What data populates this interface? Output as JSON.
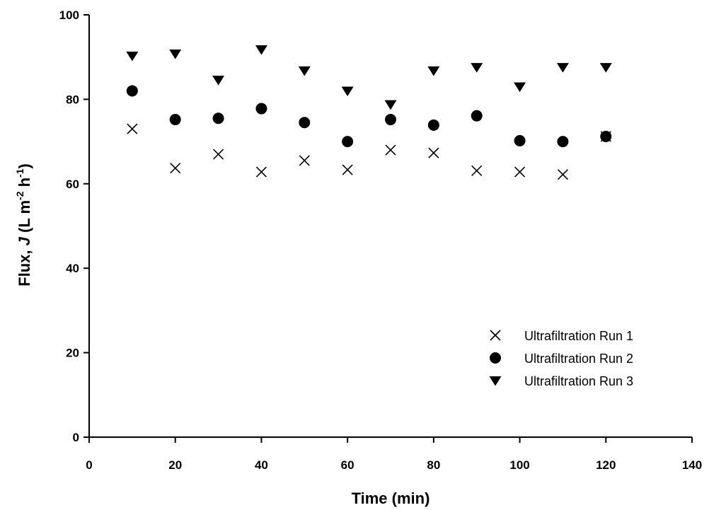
{
  "chart_data": {
    "type": "scatter",
    "title": "",
    "xlabel": "Time (min)",
    "ylabel_parts": {
      "prefix": "Flux, ",
      "italic": "J",
      "units_open": " (L m",
      "exp1": "-2",
      "units_mid": " h",
      "exp2": "-1",
      "units_close": ")"
    },
    "xlim": [
      0,
      140
    ],
    "ylim": [
      0,
      100
    ],
    "x_ticks": [
      0,
      20,
      40,
      60,
      80,
      100,
      120,
      140
    ],
    "y_ticks": [
      0,
      20,
      40,
      60,
      80,
      100
    ],
    "grid": false,
    "legend_position": "lower-right",
    "series": [
      {
        "name": "Ultrafiltration Run 1",
        "marker": "x",
        "color": "#000000",
        "x": [
          10,
          20,
          30,
          40,
          50,
          60,
          70,
          80,
          90,
          100,
          110,
          120
        ],
        "y": [
          73,
          63.7,
          67,
          62.8,
          65.5,
          63.3,
          68,
          67.3,
          63.1,
          62.8,
          62.2,
          71.2
        ]
      },
      {
        "name": "Ultrafiltration Run 2",
        "marker": "circle",
        "color": "#000000",
        "x": [
          10,
          20,
          30,
          40,
          50,
          60,
          70,
          80,
          90,
          100,
          110,
          120
        ],
        "y": [
          82,
          75.2,
          75.5,
          77.8,
          74.5,
          70,
          75.2,
          73.9,
          76.1,
          70.2,
          70,
          71.2
        ]
      },
      {
        "name": "Ultrafiltration Run 3",
        "marker": "triangle-down",
        "color": "#000000",
        "x": [
          10,
          20,
          30,
          40,
          50,
          60,
          70,
          80,
          90,
          100,
          110,
          120
        ],
        "y": [
          90.3,
          90.8,
          84.6,
          91.8,
          86.8,
          82,
          78.8,
          86.8,
          87.6,
          83,
          87.6,
          87.6
        ]
      }
    ]
  }
}
